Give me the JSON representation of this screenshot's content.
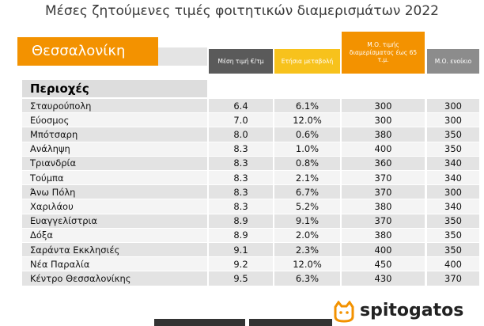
{
  "header": {
    "title": "Μέσες ζητούμενες τιμές φοιτητικών διαμερισμάτων 2022",
    "city": "Θεσσαλονίκη"
  },
  "table": {
    "columns": [
      "Μέση τιμή €/τμ",
      "Ετήσια μεταβολή",
      "Μ.Ο. τιμής διαμερίσματος έως 65 τ.μ.",
      "Μ.Ο. ενοίκιο"
    ],
    "region_header": "Περιοχές",
    "rows": [
      [
        "Σταυρούπολη",
        "6.4",
        "6.1%",
        "300",
        "300"
      ],
      [
        "Εύοσμος",
        "7.0",
        "12.0%",
        "300",
        "300"
      ],
      [
        "Μπότσαρη",
        "8.0",
        "0.6%",
        "380",
        "350"
      ],
      [
        "Ανάληψη",
        "8.3",
        "1.0%",
        "400",
        "350"
      ],
      [
        "Τριανδρία",
        "8.3",
        "0.8%",
        "360",
        "340"
      ],
      [
        "Τούμπα",
        "8.3",
        "2.1%",
        "370",
        "340"
      ],
      [
        "Άνω Πόλη",
        "8.3",
        "6.7%",
        "370",
        "300"
      ],
      [
        "Χαριλάου",
        "8.3",
        "5.2%",
        "380",
        "340"
      ],
      [
        "Ευαγγελίστρια",
        "8.9",
        "9.1%",
        "370",
        "350"
      ],
      [
        "Δόξα",
        "8.9",
        "2.0%",
        "380",
        "350"
      ],
      [
        "Σαράντα Εκκλησιές",
        "9.1",
        "2.3%",
        "400",
        "350"
      ],
      [
        "Νέα Παραλία",
        "9.2",
        "12.0%",
        "450",
        "400"
      ],
      [
        "Κέντρο Θεσσαλονίκης",
        "9.5",
        "6.3%",
        "430",
        "370"
      ]
    ]
  },
  "footer": {
    "brand": "spitogatos"
  }
}
